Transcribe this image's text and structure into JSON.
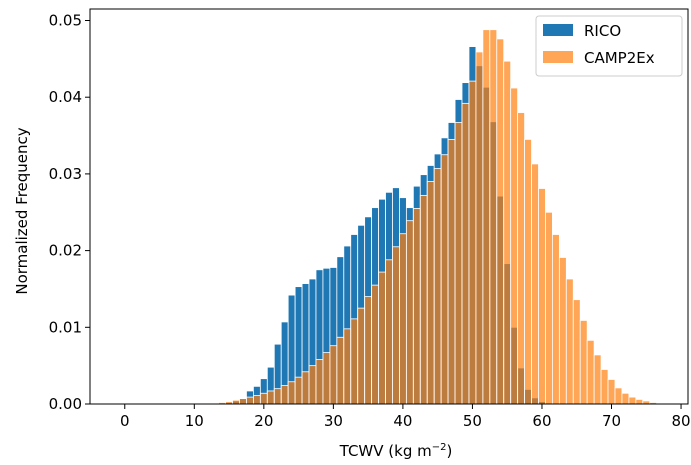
{
  "chart_data": {
    "type": "bar",
    "xlabel_main": "TCWV (kg m",
    "xlabel_sup": "−2",
    "xlabel_close": ")",
    "ylabel": "Normalized Frequency",
    "xlim": [
      -5,
      81
    ],
    "ylim": [
      0,
      0.0515
    ],
    "xticks": [
      0,
      10,
      20,
      30,
      40,
      50,
      60,
      70,
      80
    ],
    "yticks": [
      0.0,
      0.01,
      0.02,
      0.03,
      0.04,
      0.05
    ],
    "xtick_labels": [
      "0",
      "10",
      "20",
      "30",
      "40",
      "50",
      "60",
      "70",
      "80"
    ],
    "ytick_labels": [
      "0.00",
      "0.01",
      "0.02",
      "0.03",
      "0.04",
      "0.05"
    ],
    "bin_width": 1,
    "grid": false,
    "legend_position": "top-right",
    "series": [
      {
        "name": "RICO",
        "color": "#1f77b4",
        "alpha": 1.0,
        "x": [
          14,
          15,
          16,
          17,
          18,
          19,
          20,
          21,
          22,
          23,
          24,
          25,
          26,
          27,
          28,
          29,
          30,
          31,
          32,
          33,
          34,
          35,
          36,
          37,
          38,
          39,
          40,
          41,
          42,
          43,
          44,
          45,
          46,
          47,
          48,
          49,
          50,
          51,
          52,
          53,
          54,
          55,
          56,
          57,
          58,
          59,
          60,
          61,
          62
        ],
        "values": [
          0.0001,
          0.0002,
          0.0004,
          0.0007,
          0.0017,
          0.0023,
          0.0033,
          0.0048,
          0.0078,
          0.0107,
          0.0142,
          0.0153,
          0.0157,
          0.0163,
          0.0175,
          0.0177,
          0.0178,
          0.0192,
          0.0206,
          0.0221,
          0.0233,
          0.0244,
          0.0256,
          0.0267,
          0.0276,
          0.0282,
          0.0269,
          0.0256,
          0.0284,
          0.0299,
          0.0311,
          0.0326,
          0.0347,
          0.0367,
          0.0397,
          0.0419,
          0.0466,
          0.0441,
          0.0413,
          0.0368,
          0.0271,
          0.0183,
          0.01,
          0.0047,
          0.0019,
          0.0008,
          0.0003,
          0.0001,
          5e-05
        ]
      },
      {
        "name": "CAMP2Ex",
        "color": "#ff7f0e",
        "alpha": 0.7,
        "x": [
          12,
          13,
          14,
          15,
          16,
          17,
          18,
          19,
          20,
          21,
          22,
          23,
          24,
          25,
          26,
          27,
          28,
          29,
          30,
          31,
          32,
          33,
          34,
          35,
          36,
          37,
          38,
          39,
          40,
          41,
          42,
          43,
          44,
          45,
          46,
          47,
          48,
          49,
          50,
          51,
          52,
          53,
          54,
          55,
          56,
          57,
          58,
          59,
          60,
          61,
          62,
          63,
          64,
          65,
          66,
          67,
          68,
          69,
          70,
          71,
          72,
          73,
          74,
          75,
          76,
          77,
          78
        ],
        "values": [
          5e-05,
          0.0001,
          0.0002,
          0.0003,
          0.0005,
          0.0007,
          0.0009,
          0.0011,
          0.0014,
          0.0017,
          0.002,
          0.0024,
          0.0029,
          0.0035,
          0.0042,
          0.005,
          0.0058,
          0.0067,
          0.0076,
          0.0087,
          0.0098,
          0.0111,
          0.0125,
          0.014,
          0.0155,
          0.0172,
          0.0188,
          0.0205,
          0.0222,
          0.0239,
          0.0255,
          0.0272,
          0.029,
          0.0307,
          0.0325,
          0.0345,
          0.0367,
          0.0392,
          0.0421,
          0.0459,
          0.0488,
          0.0488,
          0.0476,
          0.0447,
          0.0412,
          0.038,
          0.0345,
          0.0313,
          0.0281,
          0.025,
          0.0221,
          0.0191,
          0.0163,
          0.0136,
          0.0109,
          0.0083,
          0.0064,
          0.0045,
          0.0032,
          0.0021,
          0.0014,
          0.0009,
          0.0006,
          0.0004,
          0.0002,
          0.0001,
          5e-05
        ]
      }
    ]
  }
}
